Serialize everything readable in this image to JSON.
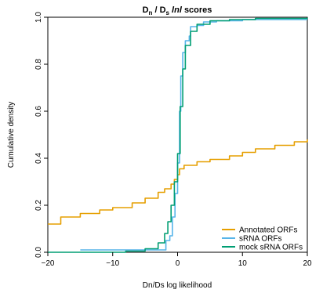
{
  "chart_data": {
    "type": "line",
    "title": {
      "main": "D",
      "sub_n": "n",
      "slash": " / D",
      "sub_s": "s",
      "italic": " lnl ",
      "tail": "scores"
    },
    "xlabel": "Dn/Ds log likelihood",
    "ylabel": "Cumulative density",
    "xlim": [
      -20,
      20
    ],
    "ylim": [
      0,
      1
    ],
    "x_ticks": [
      -20,
      -10,
      0,
      10,
      20
    ],
    "x_tick_labels": [
      "−20",
      "−10",
      "0",
      "10",
      "20"
    ],
    "y_ticks": [
      0,
      0.2,
      0.4,
      0.6,
      0.8,
      1
    ],
    "y_tick_labels": [
      "0.0",
      "0.2",
      "0.4",
      "0.6",
      "0.8",
      "1.0"
    ],
    "grid": false,
    "legend_position": "bottom-right",
    "series": [
      {
        "name": "Annotated ORFs",
        "color": "#e69f00",
        "points": [
          [
            -20,
            0.12
          ],
          [
            -18,
            0.15
          ],
          [
            -15,
            0.165
          ],
          [
            -12,
            0.18
          ],
          [
            -10,
            0.19
          ],
          [
            -7,
            0.21
          ],
          [
            -5,
            0.23
          ],
          [
            -3,
            0.255
          ],
          [
            -2,
            0.27
          ],
          [
            -1,
            0.29
          ],
          [
            -0.5,
            0.31
          ],
          [
            0,
            0.33
          ],
          [
            0.3,
            0.355
          ],
          [
            1,
            0.37
          ],
          [
            3,
            0.385
          ],
          [
            5,
            0.395
          ],
          [
            8,
            0.41
          ],
          [
            10,
            0.425
          ],
          [
            12,
            0.44
          ],
          [
            15,
            0.455
          ],
          [
            18,
            0.47
          ],
          [
            20,
            0.48
          ]
        ]
      },
      {
        "name": "sRNA ORFs",
        "color": "#56b4e9",
        "points": [
          [
            -15,
            0.01
          ],
          [
            -10,
            0.01
          ],
          [
            -5,
            0.01
          ],
          [
            -2,
            0.01
          ],
          [
            -1.8,
            0.05
          ],
          [
            -1.2,
            0.07
          ],
          [
            -0.8,
            0.15
          ],
          [
            -0.4,
            0.25
          ],
          [
            0,
            0.38
          ],
          [
            0.3,
            0.6
          ],
          [
            0.5,
            0.75
          ],
          [
            0.8,
            0.85
          ],
          [
            1.2,
            0.9
          ],
          [
            1.8,
            0.92
          ],
          [
            2,
            0.96
          ],
          [
            3,
            0.965
          ],
          [
            4,
            0.98
          ],
          [
            6,
            0.985
          ],
          [
            10,
            0.99
          ],
          [
            20,
            0.99
          ]
        ]
      },
      {
        "name": "mock sRNA ORFs",
        "color": "#009e73",
        "points": [
          [
            -20,
            0.0
          ],
          [
            -12,
            0.0
          ],
          [
            -8,
            0.005
          ],
          [
            -5,
            0.015
          ],
          [
            -3,
            0.04
          ],
          [
            -2,
            0.08
          ],
          [
            -1.5,
            0.13
          ],
          [
            -1,
            0.2
          ],
          [
            -0.5,
            0.3
          ],
          [
            0,
            0.42
          ],
          [
            0.4,
            0.62
          ],
          [
            0.8,
            0.78
          ],
          [
            1.2,
            0.88
          ],
          [
            2,
            0.94
          ],
          [
            3,
            0.97
          ],
          [
            5,
            0.985
          ],
          [
            8,
            0.99
          ],
          [
            12,
            0.995
          ],
          [
            20,
            0.998
          ]
        ]
      }
    ]
  }
}
